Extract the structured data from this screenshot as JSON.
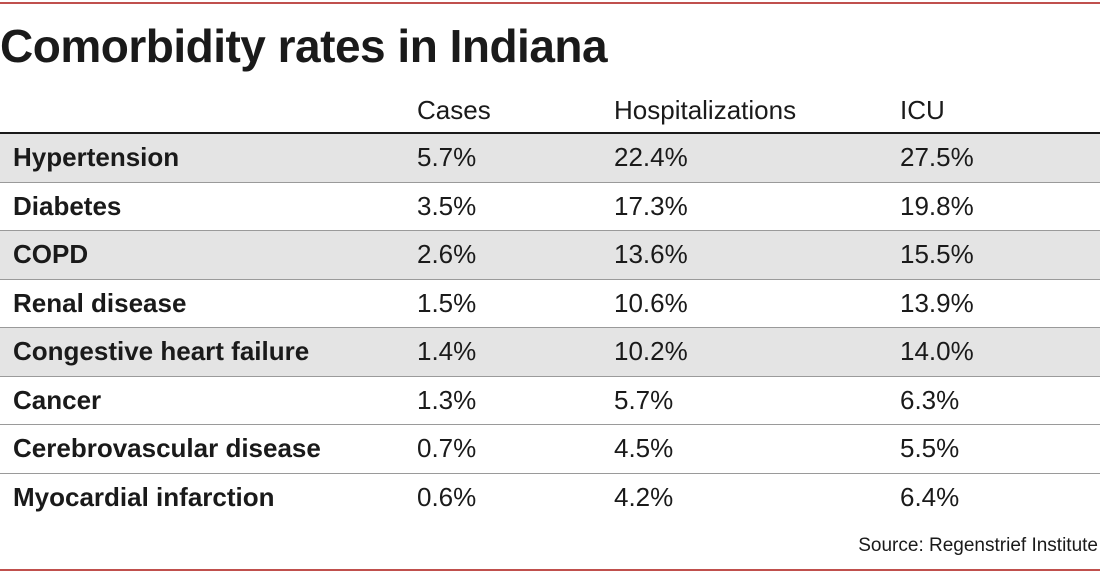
{
  "colors": {
    "rule": "#c0504d",
    "shaded_row": "#e4e4e4",
    "text": "#1a1a1a",
    "divider": "#9a9a9a"
  },
  "chart_data": {
    "type": "table",
    "title": "Comorbidity rates in Indiana",
    "columns": [
      "",
      "Cases",
      "Hospitalizations",
      "ICU"
    ],
    "rows": [
      {
        "label": "Hypertension",
        "values": [
          "5.7%",
          "22.4%",
          "27.5%"
        ]
      },
      {
        "label": "Diabetes",
        "values": [
          "3.5%",
          "17.3%",
          "19.8%"
        ]
      },
      {
        "label": "COPD",
        "values": [
          "2.6%",
          "13.6%",
          "15.5%"
        ]
      },
      {
        "label": "Renal disease",
        "values": [
          "1.5%",
          "10.6%",
          "13.9%"
        ]
      },
      {
        "label": "Congestive heart failure",
        "values": [
          "1.4%",
          "10.2%",
          "14.0%"
        ]
      },
      {
        "label": "Cancer",
        "values": [
          "1.3%",
          "5.7%",
          "6.3%"
        ]
      },
      {
        "label": "Cerebrovascular disease",
        "values": [
          "0.7%",
          "4.5%",
          "5.5%"
        ]
      },
      {
        "label": "Myocardial infarction",
        "values": [
          "0.6%",
          "4.2%",
          "6.4%"
        ]
      }
    ],
    "source": "Source: Regenstrief Institute"
  }
}
